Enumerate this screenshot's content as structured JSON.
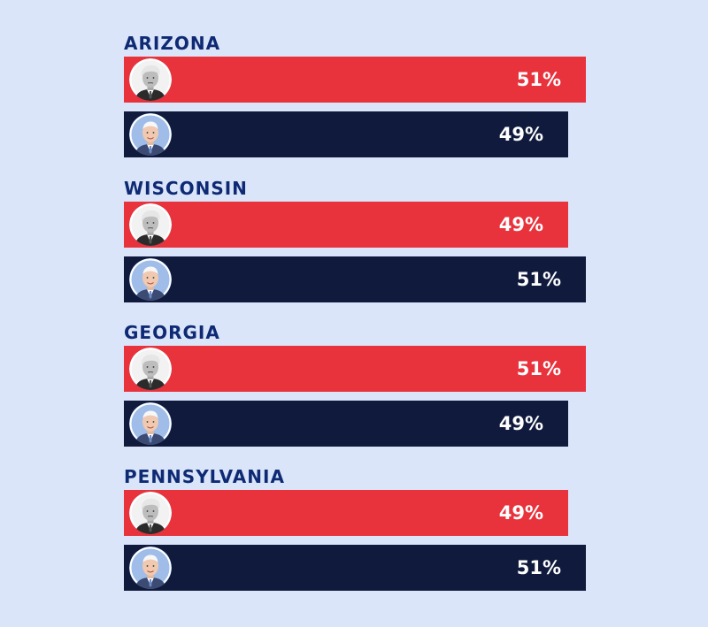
{
  "colors": {
    "background": "#dbe5f9",
    "label": "#0f2a74",
    "trump_bar": "#e8323c",
    "biden_bar": "#101a3c",
    "value_text": "#ffffff"
  },
  "icons": {
    "trump": "trump-portrait-icon",
    "biden": "biden-portrait-icon"
  },
  "chart_data": {
    "type": "bar",
    "orientation": "horizontal",
    "unit": "%",
    "xlim": [
      0,
      51
    ],
    "grid": false,
    "legend": "none",
    "groups": [
      {
        "label": "ARIZONA",
        "bars": [
          {
            "candidate_icon": "trump-portrait-icon",
            "value": 51,
            "display": "51%",
            "color": "#e8323c"
          },
          {
            "candidate_icon": "biden-portrait-icon",
            "value": 49,
            "display": "49%",
            "color": "#101a3c"
          }
        ]
      },
      {
        "label": "WISCONSIN",
        "bars": [
          {
            "candidate_icon": "trump-portrait-icon",
            "value": 49,
            "display": "49%",
            "color": "#e8323c"
          },
          {
            "candidate_icon": "biden-portrait-icon",
            "value": 51,
            "display": "51%",
            "color": "#101a3c"
          }
        ]
      },
      {
        "label": "GEORGIA",
        "bars": [
          {
            "candidate_icon": "trump-portrait-icon",
            "value": 51,
            "display": "51%",
            "color": "#e8323c"
          },
          {
            "candidate_icon": "biden-portrait-icon",
            "value": 49,
            "display": "49%",
            "color": "#101a3c"
          }
        ]
      },
      {
        "label": "PENNSYLVANIA",
        "bars": [
          {
            "candidate_icon": "trump-portrait-icon",
            "value": 49,
            "display": "49%",
            "color": "#e8323c"
          },
          {
            "candidate_icon": "biden-portrait-icon",
            "value": 51,
            "display": "51%",
            "color": "#101a3c"
          }
        ]
      }
    ]
  }
}
